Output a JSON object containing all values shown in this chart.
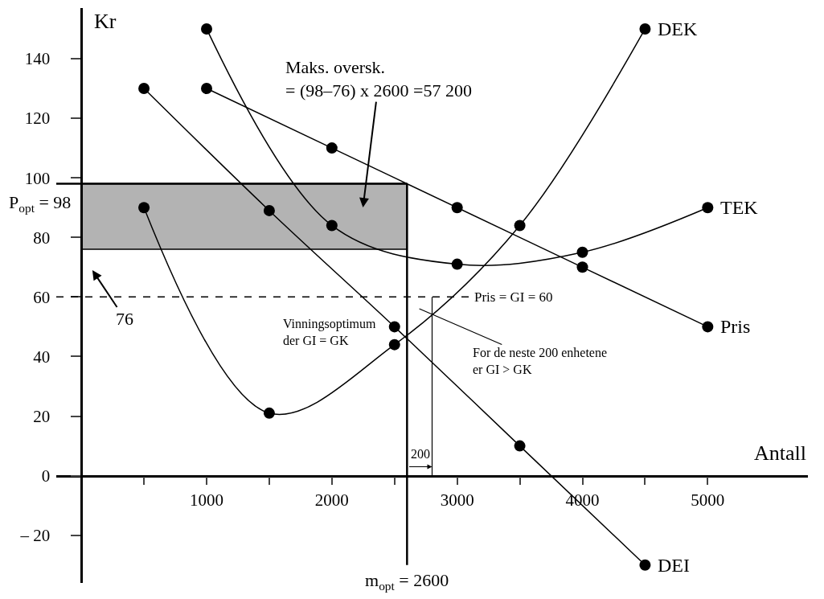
{
  "chart_data": {
    "type": "line",
    "xlabel": "Antall",
    "ylabel": "Kr",
    "series": [
      {
        "name": "DEK",
        "color": "#000000",
        "x": [
          500,
          1500,
          2500,
          3500,
          4500
        ],
        "values": [
          90,
          21,
          44,
          84,
          150
        ]
      },
      {
        "name": "TEK",
        "color": "#000000",
        "x": [
          1000,
          2000,
          3000,
          4000,
          5000
        ],
        "values": [
          150,
          84,
          71,
          75,
          90
        ]
      },
      {
        "name": "Pris",
        "color": "#000000",
        "x": [
          1000,
          2000,
          3000,
          4000,
          5000
        ],
        "values": [
          130,
          110,
          90,
          70,
          50
        ]
      },
      {
        "name": "DEI",
        "color": "#000000",
        "x": [
          500,
          1500,
          2500,
          3500,
          4500
        ],
        "values": [
          130,
          89,
          50,
          10,
          -30
        ]
      }
    ],
    "xlim": [
      -200,
      5800
    ],
    "ylim": [
      -36,
      157
    ],
    "xticks": [
      {
        "value": 500,
        "label": null
      },
      1000,
      {
        "value": 1500,
        "label": null
      },
      2000,
      {
        "value": 2500,
        "label": null
      },
      3000,
      {
        "value": 3500,
        "label": null
      },
      4000,
      {
        "value": 4500,
        "label": null
      },
      5000
    ],
    "yticks": [
      {
        "value": -20,
        "label": "– 20"
      },
      0,
      20,
      40,
      60,
      80,
      100,
      120,
      140
    ],
    "ref_lines": [
      {
        "axis": "y",
        "value": 98,
        "label": "P$_{opt}$ = 98",
        "color": "#000000",
        "line_style": "solid"
      },
      {
        "axis": "y",
        "value": 60,
        "label": "Pris = GI = 60",
        "color": "#000000",
        "line_style": "dashed"
      },
      {
        "axis": "x",
        "value": 2600,
        "label": "m$_{opt}$ = 2600",
        "color": "#000000",
        "line_style": "solid"
      },
      {
        "axis": "x",
        "value": 2800,
        "color": "#000000",
        "line_style": "solid"
      }
    ],
    "bands": [
      {
        "axis": "y",
        "from": 76,
        "to": 98,
        "color": "#b3b3b3"
      }
    ],
    "annotations": [
      "Maks. oversk.\n= (98–76) x 2600 =57 200",
      "76",
      {
        "text": "Vinningsoptimum\nder GI = GK",
        "x": 2600,
        "y": 46
      },
      "For de neste 200 enhetene\ner GI > GK",
      {
        "text": "200",
        "x": 2800,
        "y": 3
      }
    ],
    "grid": false,
    "legend": false,
    "marker": "circle",
    "line_style": "solid"
  }
}
